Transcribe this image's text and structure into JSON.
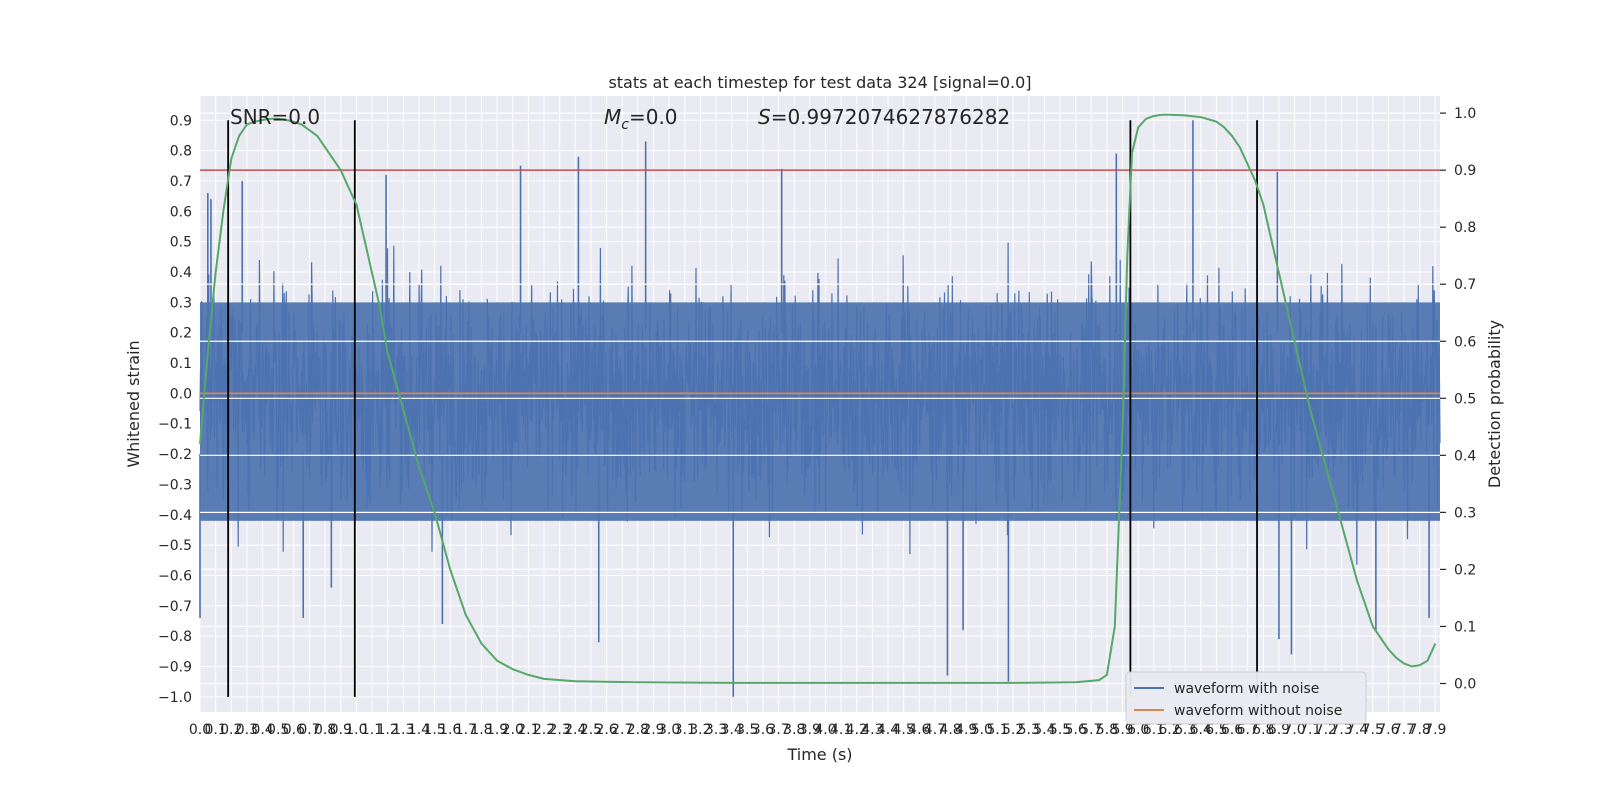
{
  "chart_data": {
    "type": "line",
    "title": "stats at each timestep for test data 324 [signal=0.0]",
    "xlabel": "Time (s)",
    "ylabel": "Whitened strain",
    "y2label": "Detection probability",
    "xlim": [
      0.0,
      7.93
    ],
    "ylim": [
      -1.05,
      0.98
    ],
    "y2lim": [
      -0.05,
      1.03
    ],
    "x_ticks": [
      "0.0",
      "0.1",
      "0.2",
      "0.3",
      "0.4",
      "0.5",
      "0.6",
      "0.7",
      "0.8",
      "0.9",
      "1.0",
      "1.1",
      "1.2",
      "1.3",
      "1.4",
      "1.5",
      "1.6",
      "1.7",
      "1.8",
      "1.9",
      "2.0",
      "2.1",
      "2.2",
      "2.3",
      "2.4",
      "2.5",
      "2.6",
      "2.7",
      "2.8",
      "2.9",
      "3.0",
      "3.1",
      "3.2",
      "3.3",
      "3.4",
      "3.5",
      "3.6",
      "3.7",
      "3.8",
      "3.9",
      "4.0",
      "4.1",
      "4.2",
      "4.3",
      "4.4",
      "4.5",
      "4.6",
      "4.7",
      "4.8",
      "4.9",
      "5.0",
      "5.1",
      "5.2",
      "5.3",
      "5.4",
      "5.5",
      "5.6",
      "5.7",
      "5.8",
      "5.9",
      "6.0",
      "6.1",
      "6.2",
      "6.3",
      "6.4",
      "6.5",
      "6.6",
      "6.7",
      "6.8",
      "6.9",
      "7.0",
      "7.1",
      "7.2",
      "7.3",
      "7.4",
      "7.5",
      "7.6",
      "7.7",
      "7.8",
      "7.9"
    ],
    "y_ticks": [
      "0.9",
      "0.8",
      "0.7",
      "0.6",
      "0.5",
      "0.4",
      "0.3",
      "0.2",
      "0.1",
      "0.0",
      "−0.1",
      "−0.2",
      "−0.3",
      "−0.4",
      "−0.5",
      "−0.6",
      "−0.7",
      "−0.8",
      "−0.9",
      "−1.0"
    ],
    "y2_ticks": [
      "1.0",
      "0.9",
      "0.8",
      "0.7",
      "0.6",
      "0.5",
      "0.4",
      "0.3",
      "0.2",
      "0.1",
      "0.0"
    ],
    "annotations": [
      "SNR=0.0",
      "M_c=0.0",
      "S=0.9972074627876282"
    ],
    "threshold": {
      "y2": 0.9,
      "color": "#c44e52"
    },
    "vertical_lines_x": [
      0.18,
      0.99,
      5.95,
      6.76
    ],
    "vertical_lines_range": [
      -1.0,
      0.9
    ],
    "legend": {
      "placement": "lower-right",
      "entries": [
        {
          "label": "waveform with noise",
          "color": "#4c72b0"
        },
        {
          "label": "waveform without noise",
          "color": "#dd8452"
        }
      ]
    },
    "series": [
      {
        "name": "waveform with noise",
        "color": "#4c72b0",
        "kind": "noise",
        "x_range": [
          0.0,
          7.93
        ],
        "bulk_amplitude": 0.3,
        "spikes": [
          {
            "x": 0.05,
            "y": 0.66
          },
          {
            "x": 0.07,
            "y": 0.64
          },
          {
            "x": 0.27,
            "y": 0.7
          },
          {
            "x": 1.19,
            "y": 0.72
          },
          {
            "x": 2.05,
            "y": 0.75
          },
          {
            "x": 2.42,
            "y": 0.78
          },
          {
            "x": 2.85,
            "y": 0.83
          },
          {
            "x": 3.72,
            "y": 0.74
          },
          {
            "x": 5.86,
            "y": 0.79
          },
          {
            "x": 6.35,
            "y": 0.9
          },
          {
            "x": 6.89,
            "y": 0.73
          },
          {
            "x": 0.0,
            "y": -0.74
          },
          {
            "x": 0.66,
            "y": -0.74
          },
          {
            "x": 0.84,
            "y": -0.64
          },
          {
            "x": 1.55,
            "y": -0.76
          },
          {
            "x": 2.55,
            "y": -0.82
          },
          {
            "x": 3.41,
            "y": -1.0
          },
          {
            "x": 4.78,
            "y": -0.93
          },
          {
            "x": 4.88,
            "y": -0.78
          },
          {
            "x": 5.17,
            "y": -0.95
          },
          {
            "x": 6.9,
            "y": -0.81
          },
          {
            "x": 6.98,
            "y": -0.86
          },
          {
            "x": 7.52,
            "y": -0.78
          },
          {
            "x": 7.86,
            "y": -0.74
          }
        ]
      },
      {
        "name": "waveform without noise",
        "color": "#dd8452",
        "kind": "line",
        "x": [
          0.0,
          7.93
        ],
        "y": [
          0.0,
          0.0
        ]
      },
      {
        "name": "",
        "color": "#55a868",
        "kind": "line",
        "axis": "y2",
        "x": [
          0.0,
          0.05,
          0.1,
          0.15,
          0.2,
          0.25,
          0.3,
          0.35,
          0.4,
          0.45,
          0.5,
          0.55,
          0.6,
          0.65,
          0.7,
          0.75,
          0.8,
          0.85,
          0.9,
          0.95,
          1.0,
          1.05,
          1.1,
          1.15,
          1.2,
          1.3,
          1.4,
          1.5,
          1.6,
          1.7,
          1.8,
          1.9,
          2.0,
          2.1,
          2.2,
          2.4,
          2.8,
          3.4,
          4.0,
          4.6,
          5.2,
          5.6,
          5.75,
          5.8,
          5.85,
          5.9,
          5.93,
          5.96,
          6.0,
          6.05,
          6.1,
          6.15,
          6.2,
          6.3,
          6.4,
          6.5,
          6.55,
          6.6,
          6.65,
          6.7,
          6.75,
          6.8,
          6.85,
          6.9,
          7.0,
          7.1,
          7.2,
          7.3,
          7.4,
          7.5,
          7.6,
          7.65,
          7.7,
          7.75,
          7.8,
          7.85,
          7.9
        ],
        "y": [
          0.42,
          0.58,
          0.72,
          0.83,
          0.92,
          0.96,
          0.98,
          0.985,
          0.988,
          0.99,
          0.99,
          0.988,
          0.985,
          0.98,
          0.97,
          0.96,
          0.94,
          0.92,
          0.9,
          0.87,
          0.84,
          0.78,
          0.72,
          0.66,
          0.58,
          0.48,
          0.38,
          0.3,
          0.2,
          0.12,
          0.07,
          0.04,
          0.025,
          0.015,
          0.008,
          0.004,
          0.002,
          0.001,
          0.001,
          0.001,
          0.001,
          0.002,
          0.006,
          0.015,
          0.1,
          0.45,
          0.75,
          0.93,
          0.975,
          0.99,
          0.995,
          0.997,
          0.997,
          0.996,
          0.993,
          0.985,
          0.975,
          0.96,
          0.94,
          0.91,
          0.88,
          0.84,
          0.78,
          0.72,
          0.6,
          0.48,
          0.38,
          0.28,
          0.18,
          0.1,
          0.06,
          0.045,
          0.035,
          0.03,
          0.032,
          0.04,
          0.07
        ]
      }
    ]
  }
}
